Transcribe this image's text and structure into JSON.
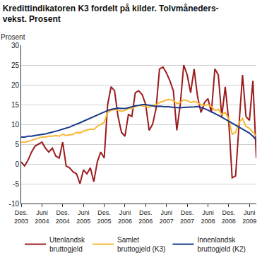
{
  "chart_data": {
    "type": "line",
    "title": "Kredittindikatoren K3 fordelt på kilder. Tolvmåneders-\nvekst. Prosent",
    "y_label": "Prosent",
    "categories": [
      "Des.\n2003",
      null,
      null,
      null,
      null,
      null,
      "Juni\n2004",
      null,
      null,
      null,
      null,
      null,
      "Des.\n2004",
      null,
      null,
      null,
      null,
      null,
      "Juni\n2005",
      null,
      null,
      null,
      null,
      null,
      "Des.\n2005",
      null,
      null,
      null,
      null,
      null,
      "Juni\n2006",
      null,
      null,
      null,
      null,
      null,
      "Des.\n2006",
      null,
      null,
      null,
      null,
      null,
      "Juni\n2007",
      null,
      null,
      null,
      null,
      null,
      "Des.\n2007",
      null,
      null,
      null,
      null,
      null,
      "Juni\n2008",
      null,
      null,
      null,
      null,
      null,
      "Des.\n2008",
      null,
      null,
      null,
      null,
      null,
      "Juni\n2009",
      null,
      null
    ],
    "series": [
      {
        "name": "Utenlandsk\nbruttogjeld",
        "color": "#9b1b1e",
        "values": [
          0.5,
          -0.5,
          1,
          3,
          4.5,
          5,
          5.5,
          4,
          3,
          4,
          2,
          1.5,
          5.5,
          -0.5,
          -1,
          -2,
          -2.5,
          -5,
          -1.5,
          -2.5,
          -1,
          -4.5,
          0.5,
          3,
          1.5,
          15,
          19.5,
          18.5,
          12,
          8,
          7,
          12.5,
          12,
          18,
          18.5,
          17.5,
          15,
          8.5,
          10,
          14,
          24,
          24.5,
          23,
          21,
          18.5,
          8.5,
          15,
          25,
          22.5,
          18,
          24,
          17,
          13,
          15.5,
          16.5,
          13,
          24,
          22.5,
          12,
          19.5,
          11,
          -3.5,
          -3,
          10,
          22.5,
          12,
          11,
          21,
          1.5
        ]
      },
      {
        "name": "Samlet\nbruttogjeld (K3)",
        "color": "#f7b733",
        "values": [
          5.5,
          5.5,
          5.7,
          6,
          6.3,
          6.5,
          6.8,
          6.8,
          7,
          7,
          7.2,
          7,
          7.5,
          7.2,
          7.3,
          7.5,
          8,
          7.8,
          8.3,
          8.5,
          8.8,
          8.7,
          9.5,
          10,
          10.5,
          13,
          13.5,
          13.8,
          13.5,
          13.3,
          13.5,
          14,
          14,
          14.5,
          14.8,
          14.7,
          14.5,
          14.3,
          14.8,
          15,
          15.5,
          15.8,
          16.2,
          16.3,
          16,
          15.3,
          15.5,
          16.2,
          16,
          15.5,
          15.8,
          15.5,
          15,
          14.8,
          15,
          14.5,
          13.5,
          13.8,
          12.5,
          13,
          11.5,
          7.5,
          8,
          10.5,
          11.5,
          9.5,
          9,
          8,
          7
        ]
      },
      {
        "name": "Innenlandsk\nbruttogjeld (K2)",
        "color": "#1a3a8a",
        "values": [
          6.8,
          6.8,
          7,
          7,
          7.2,
          7.3,
          7.4,
          7.6,
          7.8,
          8,
          8.2,
          8.5,
          8.8,
          9,
          9.3,
          9.7,
          10,
          10.4,
          10.8,
          11.2,
          11.6,
          12,
          12.4,
          12.8,
          13.2,
          13.5,
          13.8,
          14,
          14.1,
          14,
          14,
          14.2,
          14.5,
          14.7,
          14.8,
          15,
          15,
          14.9,
          14.7,
          14.5,
          14.6,
          14.5,
          14.5,
          14.4,
          14.3,
          14.2,
          14.2,
          14.3,
          14.3,
          14.4,
          14.4,
          14.5,
          14.3,
          14,
          13.6,
          13.2,
          12.8,
          12.3,
          11.8,
          11.3,
          10.8,
          10.3,
          9.8,
          9.3,
          8.8,
          8.3,
          7.8,
          7,
          6
        ]
      }
    ],
    "ylim": [
      -10,
      30
    ],
    "yticks": [
      -10,
      -5,
      0,
      5,
      10,
      15,
      20,
      25,
      30
    ],
    "grid": true,
    "legend": "bottom"
  }
}
